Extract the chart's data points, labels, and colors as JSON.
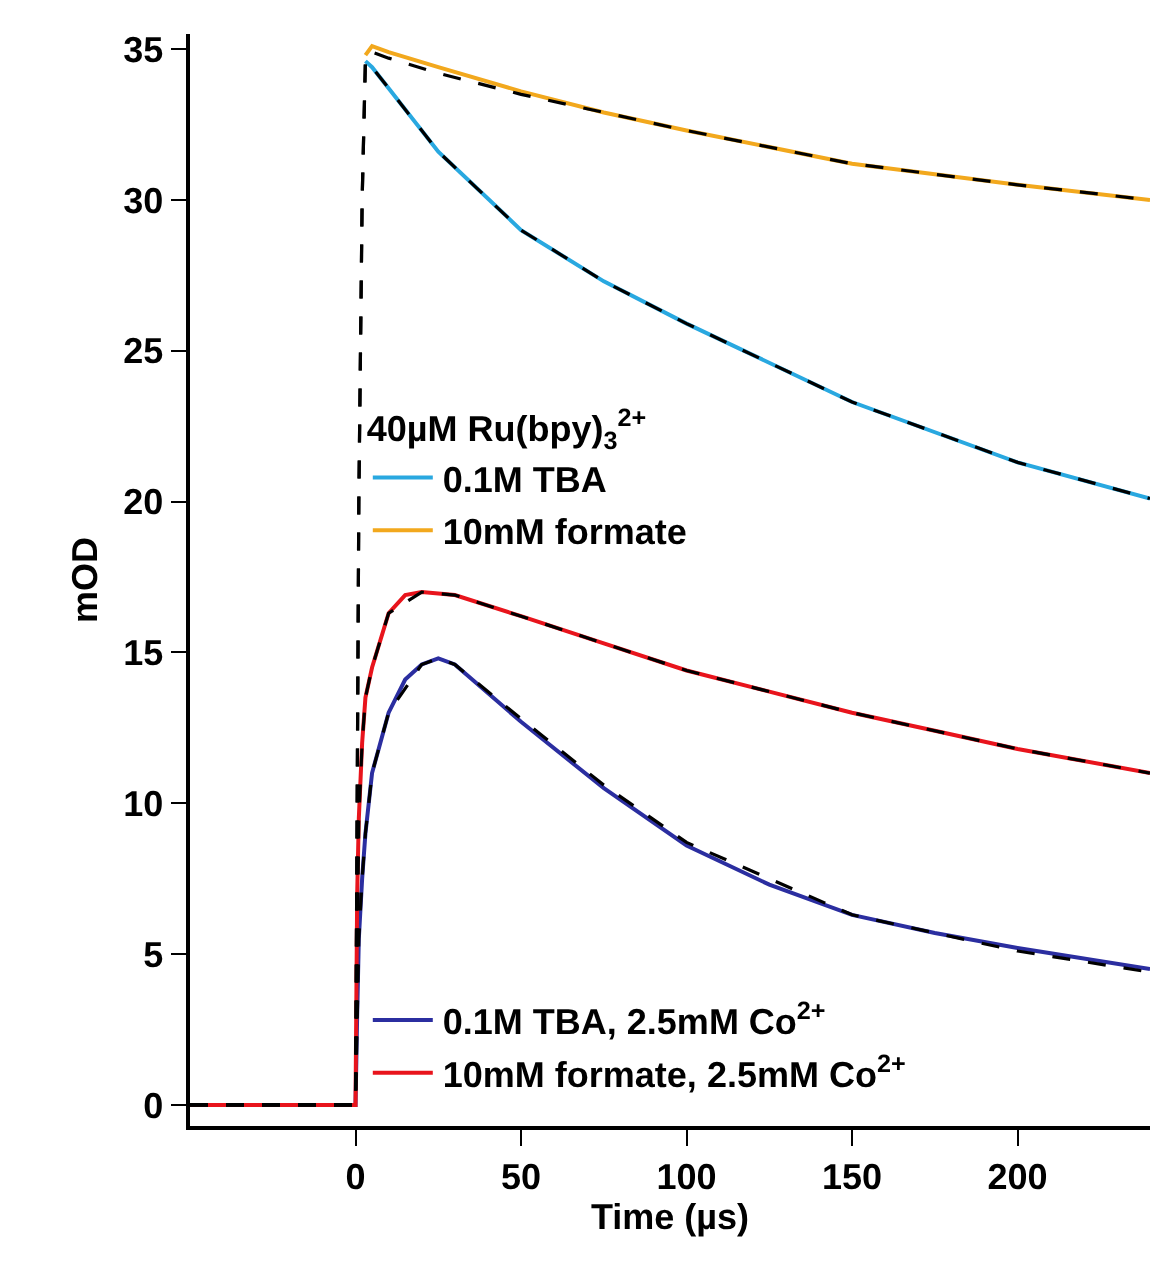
{
  "chart_data": {
    "type": "line",
    "xlabel": "Time (µs)",
    "ylabel": "mOD",
    "legend_title": "40µM Ru(bpy)$_{3}$$^{2+}$",
    "legend": "left",
    "xlim": [
      -50,
      240
    ],
    "ylim": [
      -0.7,
      35.5
    ],
    "xticks": [
      0,
      50,
      100,
      150,
      200
    ],
    "yticks": [
      0,
      5,
      10,
      15,
      20,
      25,
      30,
      35
    ],
    "line_style": "solid",
    "marker": "none",
    "series": [
      {
        "name": "0.1M TBA",
        "color": "#29a8e0",
        "x": [
          3,
          5,
          10,
          25,
          50,
          75,
          100,
          150,
          200,
          240
        ],
        "values": [
          34.6,
          34.4,
          33.7,
          31.6,
          29.0,
          27.3,
          25.9,
          23.3,
          21.3,
          20.1
        ]
      },
      {
        "name": "10mM formate",
        "color": "#f2a81d",
        "x": [
          3,
          5,
          10,
          25,
          50,
          75,
          100,
          150,
          200,
          240
        ],
        "values": [
          34.8,
          35.1,
          34.9,
          34.4,
          33.6,
          32.9,
          32.3,
          31.2,
          30.5,
          30.0
        ]
      },
      {
        "name": "0.1M TBA, 2.5mM Co$^{2+}$",
        "color": "#2b2ea0",
        "x": [
          -50,
          -25,
          0,
          0.5,
          1,
          2,
          3,
          5,
          10,
          15,
          20,
          25,
          30,
          50,
          75,
          100,
          125,
          150,
          175,
          200,
          240
        ],
        "values": [
          0,
          0,
          0,
          3,
          5.5,
          7.5,
          9,
          11,
          13,
          14.1,
          14.6,
          14.8,
          14.6,
          12.7,
          10.5,
          8.6,
          7.3,
          6.3,
          5.7,
          5.2,
          4.5
        ]
      },
      {
        "name": "10mM formate, 2.5mM Co$^{2+}$",
        "color": "#e8141c",
        "x": [
          -50,
          -25,
          0,
          0.5,
          1,
          2,
          3,
          5,
          10,
          15,
          20,
          30,
          50,
          75,
          100,
          125,
          150,
          175,
          200,
          240
        ],
        "values": [
          0,
          0,
          0,
          7,
          9.5,
          12,
          13.5,
          14.5,
          16.3,
          16.9,
          17.0,
          16.9,
          16.2,
          15.3,
          14.4,
          13.7,
          13.0,
          12.4,
          11.8,
          11.0
        ]
      },
      {
        "color": "#000000",
        "line_style": "dashed",
        "x": [
          -50,
          0,
          1,
          2,
          3,
          5,
          10,
          25,
          50,
          75,
          100,
          150,
          200,
          240
        ],
        "values": [
          0,
          0,
          20,
          30,
          34.6,
          34.4,
          33.7,
          31.6,
          29.0,
          27.3,
          25.9,
          23.3,
          21.3,
          20.1
        ]
      },
      {
        "color": "#000000",
        "line_style": "dashed",
        "x": [
          -50,
          0,
          1,
          2,
          3,
          5,
          10,
          25,
          50,
          75,
          100,
          150,
          200,
          240
        ],
        "values": [
          0,
          0,
          20,
          30,
          34.7,
          34.9,
          34.7,
          34.2,
          33.5,
          32.9,
          32.3,
          31.2,
          30.5,
          30.0
        ]
      },
      {
        "color": "#000000",
        "line_style": "dashed",
        "x": [
          -50,
          0,
          1,
          2,
          3,
          5,
          10,
          20,
          25,
          30,
          50,
          75,
          100,
          150,
          200,
          240
        ],
        "values": [
          0,
          0,
          5.5,
          7.5,
          9,
          11,
          13,
          14.6,
          14.8,
          14.6,
          12.8,
          10.6,
          8.7,
          6.3,
          5.1,
          4.4
        ]
      },
      {
        "color": "#000000",
        "line_style": "dashed",
        "x": [
          -50,
          0,
          1,
          2,
          3,
          5,
          10,
          20,
          30,
          50,
          100,
          150,
          200,
          240
        ],
        "values": [
          0,
          0,
          9.5,
          12,
          13.5,
          14.5,
          16.3,
          17.0,
          16.9,
          16.2,
          14.4,
          13.0,
          11.8,
          11.0
        ]
      }
    ]
  }
}
